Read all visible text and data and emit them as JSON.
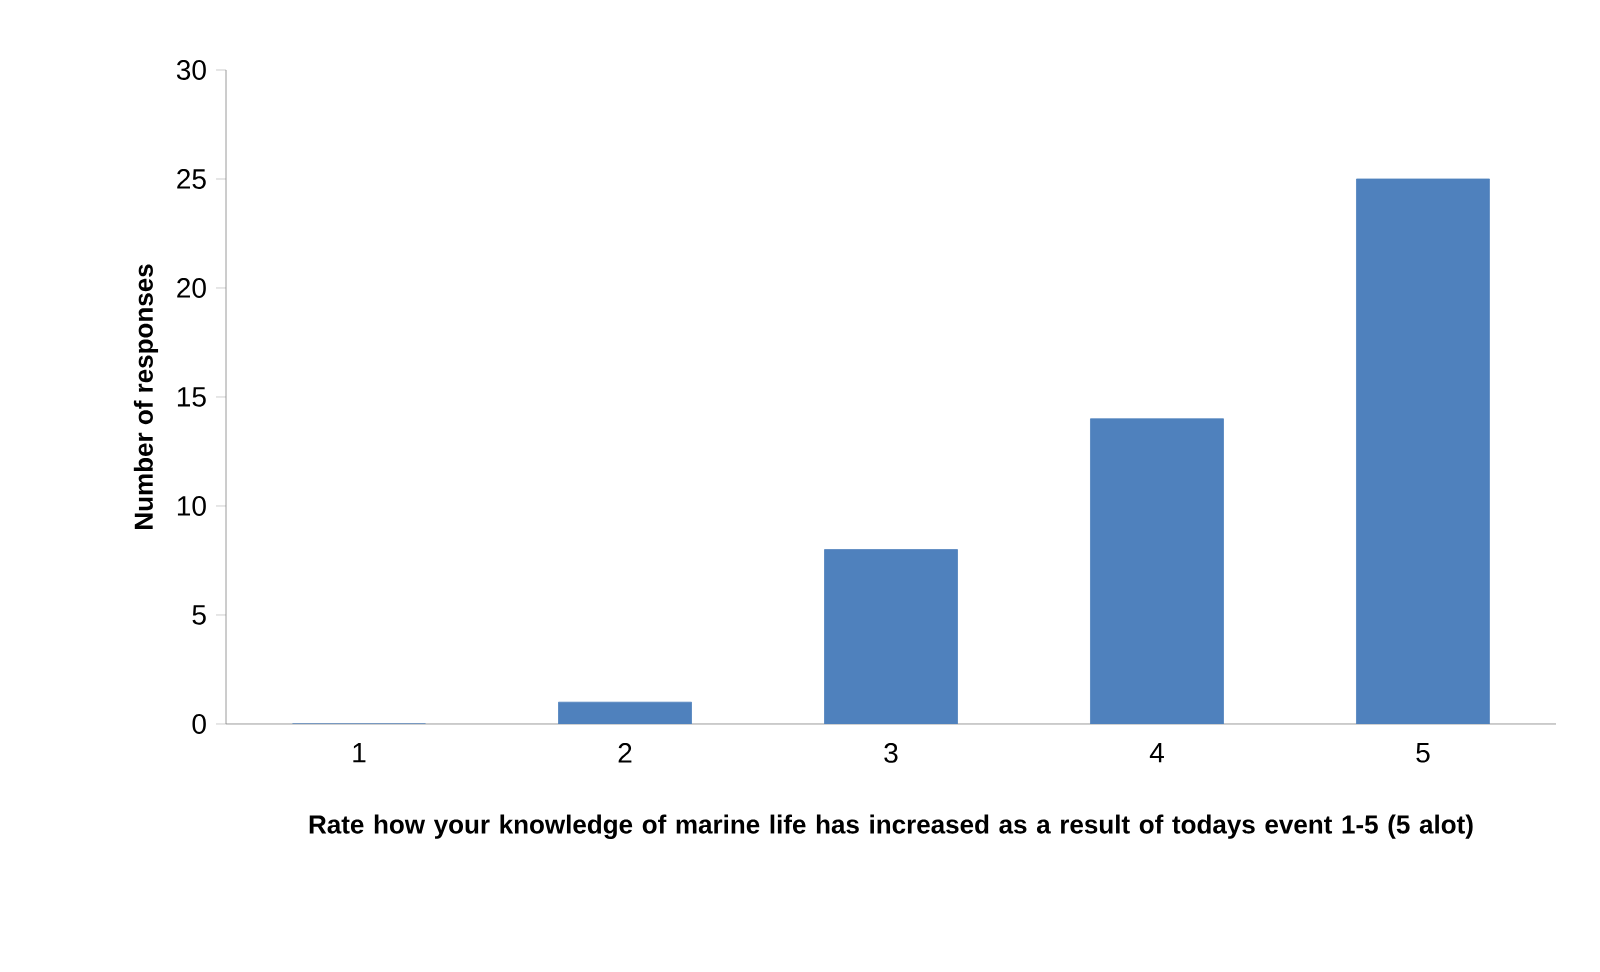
{
  "chart_data": {
    "type": "bar",
    "xlabel": "Rate how your knowledge of marine life has increased as a result of todays event 1-5 (5 alot)",
    "ylabel": "Number of responses",
    "categories": [
      "1",
      "2",
      "3",
      "4",
      "5"
    ],
    "values": [
      0,
      1,
      8,
      14,
      25
    ],
    "color": "#4f81bd",
    "ylim": [
      0,
      30
    ],
    "yticks": [
      0,
      5,
      10,
      15,
      20,
      25,
      30
    ],
    "grid": false
  }
}
